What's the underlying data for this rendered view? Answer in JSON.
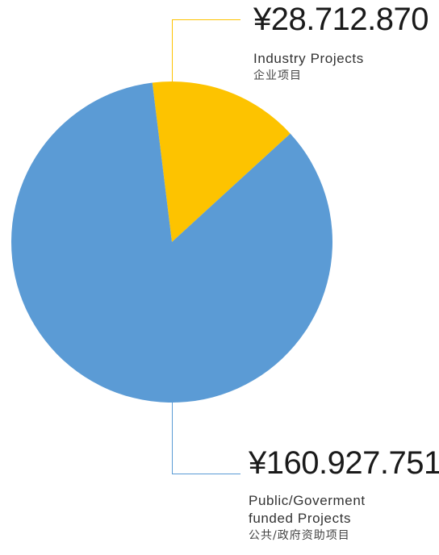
{
  "chart_data": {
    "type": "pie",
    "slices": [
      {
        "amount_label": "¥28.712.870",
        "value": 28712870,
        "label_en": "Industry Projects",
        "label_zh": "企业项目",
        "color": "#FDC300"
      },
      {
        "amount_label": "¥160.927.751",
        "value": 160927751,
        "label_en_line1": "Public/Goverment",
        "label_en_line2": "funded Projects",
        "label_zh": "公共/政府资助项目",
        "color": "#5B9BD5"
      }
    ],
    "title": "",
    "legend": "none"
  },
  "colors": {
    "industry_leader": "#FDC300",
    "public_leader": "#5B9BD5"
  }
}
